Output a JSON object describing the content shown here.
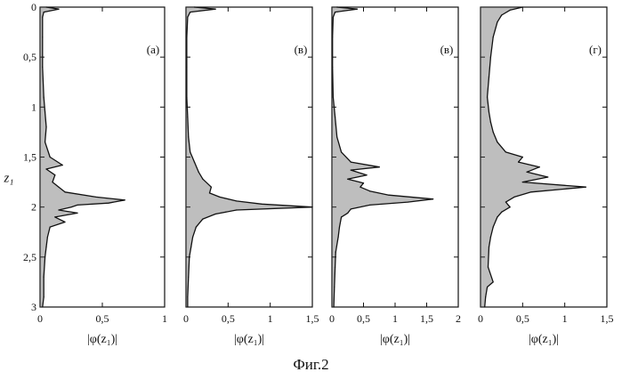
{
  "caption": "Фиг.2",
  "chart_data": [
    {
      "type": "line",
      "panel_label": "(а)",
      "ylabel": "z₁",
      "xlabel": "|φ(z₁)|",
      "xlim": [
        0,
        1
      ],
      "ylim": [
        0,
        3
      ],
      "y_inverted": true,
      "x_ticks": [
        "0",
        "0,5",
        "1"
      ],
      "y_ticks": [
        "0",
        "0,5",
        "1",
        "1,5",
        "2",
        "2,5",
        "3"
      ],
      "series": [
        {
          "y": [
            0,
            0.02,
            0.05,
            0.1,
            0.3,
            0.6,
            0.9,
            1.05,
            1.2,
            1.35,
            1.5,
            1.58,
            1.62,
            1.68,
            1.75,
            1.8,
            1.85,
            1.9,
            1.93,
            1.96,
            1.98,
            2.0,
            2.03,
            2.06,
            2.1,
            2.15,
            2.2,
            2.3,
            2.4,
            2.5,
            2.7,
            2.9,
            3.0
          ],
          "x": [
            0.05,
            0.15,
            0.03,
            0.02,
            0.02,
            0.02,
            0.03,
            0.04,
            0.05,
            0.04,
            0.08,
            0.18,
            0.05,
            0.12,
            0.1,
            0.15,
            0.2,
            0.45,
            0.68,
            0.55,
            0.3,
            0.25,
            0.15,
            0.3,
            0.12,
            0.2,
            0.08,
            0.06,
            0.05,
            0.04,
            0.03,
            0.03,
            0.02
          ]
        }
      ]
    },
    {
      "type": "line",
      "panel_label": "(в)",
      "xlabel": "|φ(z₁)|",
      "xlim": [
        0,
        1.5
      ],
      "ylim": [
        0,
        3
      ],
      "y_inverted": true,
      "x_ticks": [
        "0",
        "0,5",
        "1",
        "1,5"
      ],
      "y_ticks": [],
      "series": [
        {
          "y": [
            0,
            0.02,
            0.05,
            0.1,
            0.3,
            0.6,
            0.9,
            1.1,
            1.3,
            1.45,
            1.55,
            1.65,
            1.72,
            1.8,
            1.86,
            1.9,
            1.94,
            1.97,
            2.0,
            2.03,
            2.07,
            2.12,
            2.2,
            2.3,
            2.4,
            2.5,
            2.7,
            2.9,
            3.0
          ],
          "x": [
            0.1,
            0.35,
            0.05,
            0.02,
            0.01,
            0.01,
            0.01,
            0.02,
            0.03,
            0.05,
            0.1,
            0.15,
            0.2,
            0.3,
            0.28,
            0.4,
            0.6,
            0.9,
            1.5,
            0.6,
            0.35,
            0.2,
            0.12,
            0.08,
            0.06,
            0.04,
            0.03,
            0.02,
            0.02
          ]
        }
      ]
    },
    {
      "type": "line",
      "panel_label": "(в)",
      "xlabel": "|φ(z₁)|",
      "xlim": [
        0,
        2
      ],
      "ylim": [
        0,
        3
      ],
      "y_inverted": true,
      "x_ticks": [
        "0",
        "0,5",
        "1",
        "1,5",
        "2"
      ],
      "y_ticks": [],
      "series": [
        {
          "y": [
            0,
            0.02,
            0.05,
            0.1,
            0.3,
            0.6,
            0.9,
            1.1,
            1.3,
            1.45,
            1.55,
            1.6,
            1.63,
            1.68,
            1.72,
            1.76,
            1.8,
            1.84,
            1.88,
            1.92,
            1.95,
            1.98,
            2.02,
            2.06,
            2.1,
            2.2,
            2.3,
            2.45,
            2.6,
            2.8,
            3.0
          ],
          "x": [
            0.08,
            0.4,
            0.05,
            0.02,
            0.01,
            0.01,
            0.02,
            0.05,
            0.08,
            0.15,
            0.3,
            0.75,
            0.3,
            0.55,
            0.25,
            0.5,
            0.45,
            0.6,
            0.9,
            1.6,
            1.2,
            0.6,
            0.3,
            0.25,
            0.15,
            0.12,
            0.1,
            0.06,
            0.05,
            0.04,
            0.03
          ]
        }
      ]
    },
    {
      "type": "line",
      "panel_label": "(г)",
      "xlabel": "|φ(z₁)|",
      "xlim": [
        0,
        1.5
      ],
      "ylim": [
        0,
        3
      ],
      "y_inverted": true,
      "x_ticks": [
        "0",
        "0,5",
        "1",
        "1,5"
      ],
      "y_ticks": [],
      "series": [
        {
          "y": [
            0,
            0.03,
            0.08,
            0.15,
            0.3,
            0.5,
            0.7,
            0.9,
            1.05,
            1.15,
            1.25,
            1.35,
            1.45,
            1.5,
            1.55,
            1.6,
            1.65,
            1.7,
            1.75,
            1.8,
            1.85,
            1.9,
            1.95,
            2.0,
            2.05,
            2.1,
            2.2,
            2.3,
            2.4,
            2.6,
            2.75,
            2.8,
            2.9,
            3.0
          ],
          "x": [
            0.5,
            0.35,
            0.25,
            0.2,
            0.15,
            0.12,
            0.1,
            0.08,
            0.1,
            0.12,
            0.15,
            0.2,
            0.3,
            0.5,
            0.45,
            0.7,
            0.55,
            0.8,
            0.5,
            1.25,
            0.6,
            0.4,
            0.3,
            0.35,
            0.25,
            0.2,
            0.15,
            0.12,
            0.1,
            0.09,
            0.15,
            0.08,
            0.06,
            0.05
          ]
        }
      ]
    }
  ]
}
